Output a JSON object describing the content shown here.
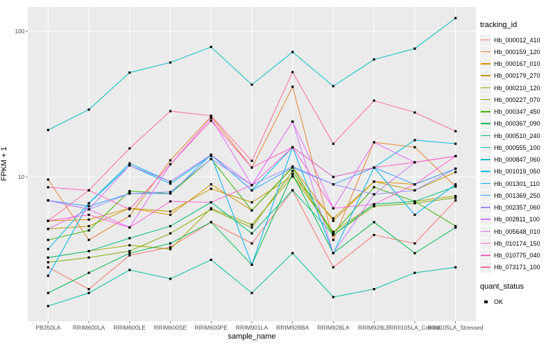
{
  "figure": {
    "y_axis_title": "FPKM + 1",
    "x_axis_title": "sample_name",
    "legend": {
      "tracking_title": "tracking_id",
      "quant_title": "quant_status",
      "quant_items": [
        {
          "label": "OK"
        }
      ]
    },
    "style": {
      "panel_bg": "#EBEBEB",
      "gridline": "#FFFFFF",
      "tick_label_color": "#4D4D4D",
      "tick_mark_color": "#333333",
      "point_color": "#000000"
    }
  },
  "chart_data": {
    "type": "line",
    "title": "",
    "xlabel": "sample_name",
    "ylabel": "FPKM + 1",
    "y_scale": "log10",
    "ylim": [
      1.02,
      147
    ],
    "yticks": [
      10,
      100
    ],
    "ytick_labels": [
      "10",
      "100"
    ],
    "minor_gridlines": [
      3.1623,
      31.623
    ],
    "grid": true,
    "legend_position": "right",
    "marker": "black-filled-square",
    "point_legend": {
      "title": "quant_status",
      "items": [
        "OK"
      ]
    },
    "categories": [
      "PB350LA",
      "RRIM600LA",
      "RRIM600LE",
      "RRIM600SE",
      "RRIM600PE",
      "RRIM901LA",
      "RRIM928BA",
      "RRIM928LA",
      "RRIM928LE",
      "RRII105LA_Control",
      "RRII105LA_Stressed"
    ],
    "series": [
      {
        "name": "Hb_000012_410",
        "color": "#F8766D",
        "values": [
          2.4,
          1.7,
          2.9,
          3.3,
          4.9,
          3.5,
          8.1,
          2.4,
          4.0,
          3.5,
          6.9
        ]
      },
      {
        "name": "Hb_000159_120",
        "color": "#EA8331",
        "values": [
          9.6,
          3.7,
          5.4,
          13.0,
          26.0,
          11.6,
          41.6,
          3.7,
          17.3,
          16.0,
          8.6
        ]
      },
      {
        "name": "Hb_000167_010",
        "color": "#D89000",
        "values": [
          5.0,
          5.1,
          6.1,
          5.5,
          8.9,
          5.9,
          11.7,
          5.0,
          9.3,
          8.9,
          11.4
        ]
      },
      {
        "name": "Hb_000179_270",
        "color": "#C09B00",
        "values": [
          4.4,
          4.6,
          6.1,
          5.8,
          8.3,
          6.7,
          10.1,
          5.2,
          9.3,
          8.1,
          10.8
        ]
      },
      {
        "name": "Hb_000210_120",
        "color": "#A3A500",
        "values": [
          2.8,
          3.1,
          3.4,
          3.2,
          6.1,
          4.7,
          10.1,
          4.2,
          6.5,
          6.8,
          7.4
        ]
      },
      {
        "name": "Hb_000227_070",
        "color": "#7CAE00",
        "values": [
          2.6,
          2.8,
          3.1,
          4.1,
          6.0,
          4.5,
          11.0,
          4.0,
          6.3,
          6.6,
          7.2
        ]
      },
      {
        "name": "Hb_000347_450",
        "color": "#39B600",
        "values": [
          3.7,
          4.3,
          8.0,
          7.7,
          13.3,
          5.9,
          11.6,
          4.1,
          8.5,
          6.8,
          4.6
        ]
      },
      {
        "name": "Hb_000367_090",
        "color": "#00BB4E",
        "values": [
          1.6,
          2.2,
          3.0,
          3.5,
          4.9,
          2.5,
          10.5,
          3.0,
          4.9,
          3.0,
          4.5
        ]
      },
      {
        "name": "Hb_000510_240",
        "color": "#00BF7D",
        "values": [
          2.8,
          3.1,
          3.8,
          4.6,
          6.7,
          4.1,
          8.1,
          4.0,
          6.5,
          6.8,
          8.6
        ]
      },
      {
        "name": "Hb_000555_100",
        "color": "#00C1A3",
        "values": [
          1.3,
          1.6,
          2.3,
          2.0,
          2.7,
          1.6,
          3.0,
          1.5,
          1.7,
          2.2,
          2.4
        ]
      },
      {
        "name": "Hb_000847_060",
        "color": "#00BFC4",
        "values": [
          21,
          29,
          52,
          61,
          78,
          43,
          72,
          42,
          64,
          76,
          123
        ]
      },
      {
        "name": "Hb_001019_050",
        "color": "#00BAE0",
        "values": [
          3.2,
          6.6,
          12.4,
          9.3,
          14.2,
          8.1,
          16.0,
          10.0,
          11.6,
          17.9,
          16.9
        ]
      },
      {
        "name": "Hb_001301_110",
        "color": "#00B0F6",
        "values": [
          2.1,
          6.6,
          12.0,
          9.0,
          14.0,
          2.5,
          16.0,
          3.0,
          11.6,
          5.5,
          8.9
        ]
      },
      {
        "name": "Hb_001369_250",
        "color": "#35A2FF",
        "values": [
          6.9,
          6.3,
          7.7,
          7.7,
          14.2,
          8.1,
          11.6,
          8.9,
          11.6,
          8.9,
          11.4
        ]
      },
      {
        "name": "Hb_002357_060",
        "color": "#9590FF",
        "values": [
          6.9,
          6.0,
          7.7,
          7.9,
          13.3,
          8.8,
          11.8,
          8.9,
          7.6,
          8.1,
          11.4
        ]
      },
      {
        "name": "Hb_002811_100",
        "color": "#C77CFF",
        "values": [
          6.9,
          6.0,
          12.0,
          9.3,
          14.2,
          8.8,
          24.0,
          3.0,
          7.6,
          12.6,
          13.9
        ]
      },
      {
        "name": "Hb_005648_010",
        "color": "#E76BF3",
        "values": [
          4.4,
          6.0,
          4.5,
          12.2,
          25.4,
          8.8,
          24.0,
          6.1,
          17.3,
          12.6,
          13.9
        ]
      },
      {
        "name": "Hb_010174_150",
        "color": "#FA62DB",
        "values": [
          5.0,
          5.5,
          4.5,
          6.8,
          6.7,
          8.8,
          16.0,
          6.1,
          6.5,
          8.9,
          13.9
        ]
      },
      {
        "name": "Hb_010775_040",
        "color": "#FF62BC",
        "values": [
          8.5,
          8.1,
          6.0,
          12.2,
          24.3,
          11.6,
          16.0,
          10.0,
          11.6,
          12.6,
          13.9
        ]
      },
      {
        "name": "Hb_073171_100",
        "color": "#FF6A98",
        "values": [
          5.0,
          8.1,
          15.7,
          28.3,
          26.3,
          12.9,
          52.4,
          16.9,
          33.4,
          27.7,
          20.6
        ]
      }
    ]
  }
}
